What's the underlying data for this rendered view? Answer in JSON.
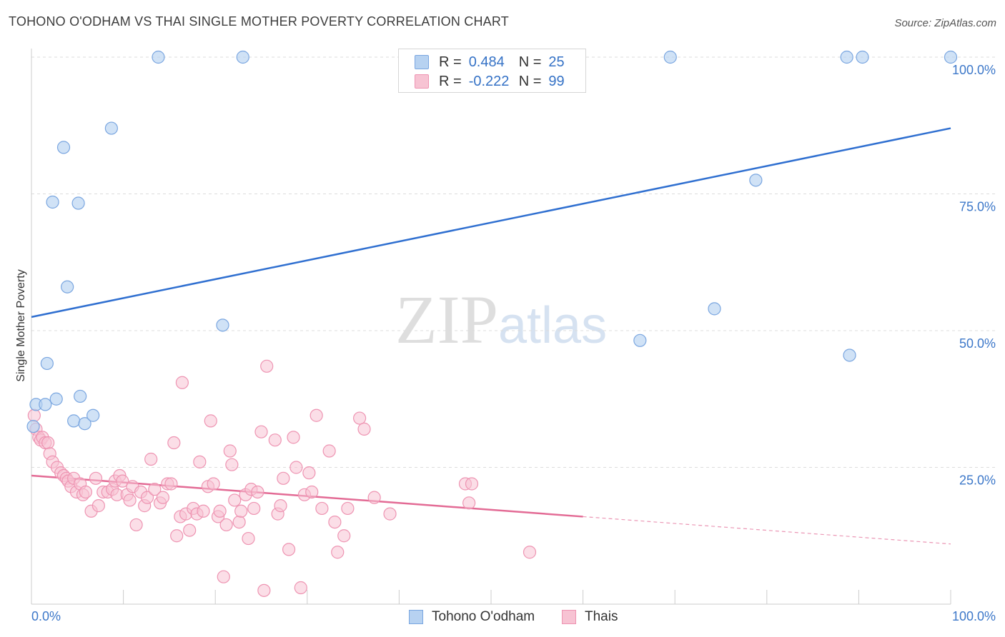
{
  "header": {
    "title": "TOHONO O'ODHAM VS THAI SINGLE MOTHER POVERTY CORRELATION CHART",
    "source": "Source: ZipAtlas.com"
  },
  "watermark": {
    "zip": "ZIP",
    "atlas": "atlas"
  },
  "legend": {
    "row1": {
      "r_label": "R =",
      "r_value": "0.484",
      "n_label": "N =",
      "n_value": "25"
    },
    "row2": {
      "r_label": "R =",
      "r_value": "-0.222",
      "n_label": "N =",
      "n_value": "99"
    },
    "series1": "Tohono O'odham",
    "series2": "Thais"
  },
  "colors": {
    "blue_fill": "#b7d2f1",
    "blue_stroke": "#7aa6e0",
    "blue_line": "#2f6fd0",
    "pink_fill": "#f7c3d3",
    "pink_stroke": "#ee94b2",
    "pink_line": "#e36b95",
    "tick_text": "#3d78c9"
  },
  "chart_data": {
    "type": "scatter",
    "title": "TOHONO O'ODHAM VS THAI SINGLE MOTHER POVERTY CORRELATION CHART",
    "xlabel": "",
    "ylabel": "Single Mother Poverty",
    "xlim": [
      0,
      100
    ],
    "ylim": [
      0,
      100
    ],
    "x_tick_labels": [
      "0.0%",
      "100.0%"
    ],
    "y_ticks": [
      25,
      50,
      75,
      100
    ],
    "y_tick_labels": [
      "25.0%",
      "50.0%",
      "75.0%",
      "100.0%"
    ],
    "grid": "horizontal dashed",
    "legend_position": "top-center",
    "series": [
      {
        "name": "Tohono O'odham",
        "R": 0.484,
        "N": 25,
        "trend": {
          "x": [
            0,
            100
          ],
          "y": [
            52.5,
            87.0
          ]
        },
        "points": [
          [
            0.2,
            32.5
          ],
          [
            0.5,
            36.5
          ],
          [
            1.5,
            36.5
          ],
          [
            1.7,
            44.0
          ],
          [
            2.3,
            73.5
          ],
          [
            2.7,
            37.5
          ],
          [
            3.5,
            83.5
          ],
          [
            3.9,
            58.0
          ],
          [
            4.6,
            33.5
          ],
          [
            5.1,
            73.3
          ],
          [
            5.3,
            38.0
          ],
          [
            5.8,
            33.0
          ],
          [
            6.7,
            34.5
          ],
          [
            8.7,
            87.0
          ],
          [
            13.8,
            100.0
          ],
          [
            20.8,
            51.0
          ],
          [
            23.0,
            100.0
          ],
          [
            66.2,
            48.2
          ],
          [
            69.5,
            100.0
          ],
          [
            74.3,
            54.0
          ],
          [
            78.8,
            77.5
          ],
          [
            88.7,
            100.0
          ],
          [
            89.0,
            45.5
          ],
          [
            90.4,
            100.0
          ],
          [
            100.0,
            100.0
          ]
        ]
      },
      {
        "name": "Thais",
        "R": -0.222,
        "N": 99,
        "trend": {
          "x": [
            0,
            60
          ],
          "y": [
            23.5,
            16.0
          ]
        },
        "trend_dashed": {
          "x": [
            60,
            100
          ],
          "y": [
            16.0,
            11.0
          ]
        },
        "points": [
          [
            0.3,
            34.5
          ],
          [
            0.5,
            32.0
          ],
          [
            0.8,
            30.5
          ],
          [
            1.0,
            30.0
          ],
          [
            1.2,
            30.5
          ],
          [
            1.5,
            29.5
          ],
          [
            1.8,
            29.5
          ],
          [
            2.0,
            27.5
          ],
          [
            2.3,
            26.0
          ],
          [
            2.8,
            25.0
          ],
          [
            3.2,
            24.0
          ],
          [
            3.5,
            23.5
          ],
          [
            3.8,
            23.0
          ],
          [
            4.0,
            22.5
          ],
          [
            4.3,
            21.5
          ],
          [
            4.6,
            23.0
          ],
          [
            4.9,
            20.5
          ],
          [
            5.3,
            22.0
          ],
          [
            5.6,
            20.0
          ],
          [
            5.9,
            20.5
          ],
          [
            6.5,
            17.0
          ],
          [
            7.0,
            23.0
          ],
          [
            7.3,
            18.0
          ],
          [
            7.8,
            20.5
          ],
          [
            8.3,
            20.5
          ],
          [
            8.8,
            21.0
          ],
          [
            9.1,
            22.5
          ],
          [
            9.3,
            20.0
          ],
          [
            9.6,
            23.5
          ],
          [
            9.9,
            22.5
          ],
          [
            10.4,
            20.0
          ],
          [
            10.7,
            19.0
          ],
          [
            11.0,
            21.5
          ],
          [
            11.4,
            14.5
          ],
          [
            11.9,
            20.5
          ],
          [
            12.3,
            18.0
          ],
          [
            12.6,
            19.5
          ],
          [
            13.0,
            26.5
          ],
          [
            13.4,
            21.0
          ],
          [
            14.0,
            18.5
          ],
          [
            14.3,
            19.5
          ],
          [
            14.8,
            22.0
          ],
          [
            15.2,
            22.0
          ],
          [
            15.5,
            29.5
          ],
          [
            15.8,
            12.5
          ],
          [
            16.2,
            16.0
          ],
          [
            16.4,
            40.5
          ],
          [
            16.8,
            16.5
          ],
          [
            17.2,
            13.5
          ],
          [
            17.6,
            17.5
          ],
          [
            18.0,
            16.5
          ],
          [
            18.3,
            26.0
          ],
          [
            18.7,
            17.0
          ],
          [
            19.2,
            21.5
          ],
          [
            19.5,
            33.5
          ],
          [
            19.8,
            22.0
          ],
          [
            20.3,
            16.0
          ],
          [
            20.5,
            17.0
          ],
          [
            20.9,
            5.0
          ],
          [
            21.2,
            14.5
          ],
          [
            21.6,
            28.0
          ],
          [
            21.8,
            25.5
          ],
          [
            22.1,
            19.0
          ],
          [
            22.6,
            15.0
          ],
          [
            22.8,
            17.0
          ],
          [
            23.3,
            20.0
          ],
          [
            23.6,
            12.0
          ],
          [
            23.9,
            21.0
          ],
          [
            24.2,
            17.5
          ],
          [
            24.6,
            20.5
          ],
          [
            25.0,
            31.5
          ],
          [
            25.3,
            2.5
          ],
          [
            25.6,
            43.5
          ],
          [
            26.5,
            30.0
          ],
          [
            26.8,
            16.5
          ],
          [
            27.1,
            18.0
          ],
          [
            27.4,
            23.0
          ],
          [
            28.0,
            10.0
          ],
          [
            28.5,
            30.5
          ],
          [
            28.8,
            25.0
          ],
          [
            29.3,
            3.0
          ],
          [
            29.7,
            20.0
          ],
          [
            30.2,
            24.0
          ],
          [
            30.5,
            20.5
          ],
          [
            31.0,
            34.5
          ],
          [
            31.6,
            17.5
          ],
          [
            32.4,
            28.0
          ],
          [
            33.0,
            15.0
          ],
          [
            33.3,
            9.5
          ],
          [
            34.0,
            12.5
          ],
          [
            34.4,
            17.5
          ],
          [
            35.7,
            34.0
          ],
          [
            36.2,
            32.0
          ],
          [
            37.3,
            19.5
          ],
          [
            39.0,
            16.5
          ],
          [
            47.2,
            22.0
          ],
          [
            47.6,
            18.5
          ],
          [
            47.9,
            22.0
          ],
          [
            54.2,
            9.5
          ]
        ]
      }
    ]
  }
}
